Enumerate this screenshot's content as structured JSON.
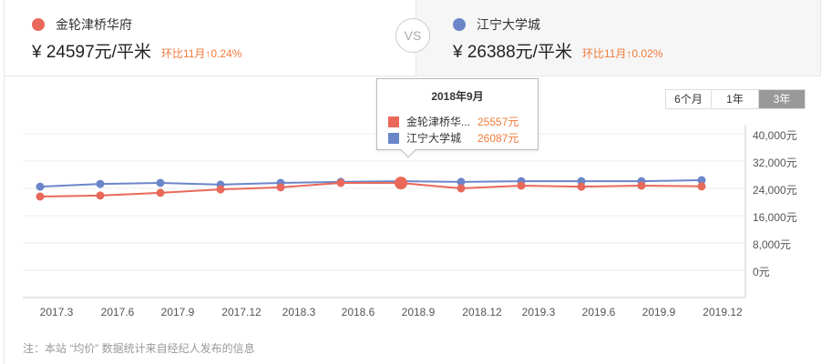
{
  "compare": {
    "left": {
      "name": "金轮津桥华府",
      "price": "¥ 24597元/平米",
      "change": "环比11月↑0.24%",
      "color": "#e8695a"
    },
    "vs": "VS",
    "right": {
      "name": "江宁大学城",
      "price": "¥ 26388元/平米",
      "change": "环比11月↑0.02%",
      "color": "#6b86c8"
    }
  },
  "range_tabs": [
    {
      "label": "6个月",
      "active": false
    },
    {
      "label": "1年",
      "active": false
    },
    {
      "label": "3年",
      "active": true
    }
  ],
  "tooltip": {
    "title": "2018年9月",
    "rows": [
      {
        "name": "金轮津桥华...",
        "value": "25557元"
      },
      {
        "name": "江宁大学城",
        "value": "26087元"
      }
    ]
  },
  "note": "注：本站 “均价” 数据统计来自经纪人发布的信息",
  "chart_data": {
    "type": "line",
    "title": "",
    "xlabel": "",
    "ylabel": "",
    "x": [
      "2017.3",
      "2017.6",
      "2017.9",
      "2017.12",
      "2018.3",
      "2018.6",
      "2018.9",
      "2018.12",
      "2019.3",
      "2019.6",
      "2019.9",
      "2019.12"
    ],
    "y_ticks": [
      "40,000元",
      "32,000元",
      "24,000元",
      "16,000元",
      "8,000元",
      "0元"
    ],
    "ylim": [
      0,
      40000
    ],
    "grid": true,
    "y_axis_position": "right",
    "highlighted_index": 6,
    "series": [
      {
        "name": "金轮津桥华府",
        "color": "#e8695a",
        "values": [
          21600,
          21900,
          22700,
          23700,
          24300,
          25600,
          25557,
          24000,
          24800,
          24500,
          24800,
          24597
        ]
      },
      {
        "name": "江宁大学城",
        "color": "#6b86c8",
        "values": [
          24500,
          25300,
          25600,
          25100,
          25600,
          25900,
          26087,
          25900,
          26100,
          26100,
          26100,
          26388
        ]
      }
    ]
  }
}
